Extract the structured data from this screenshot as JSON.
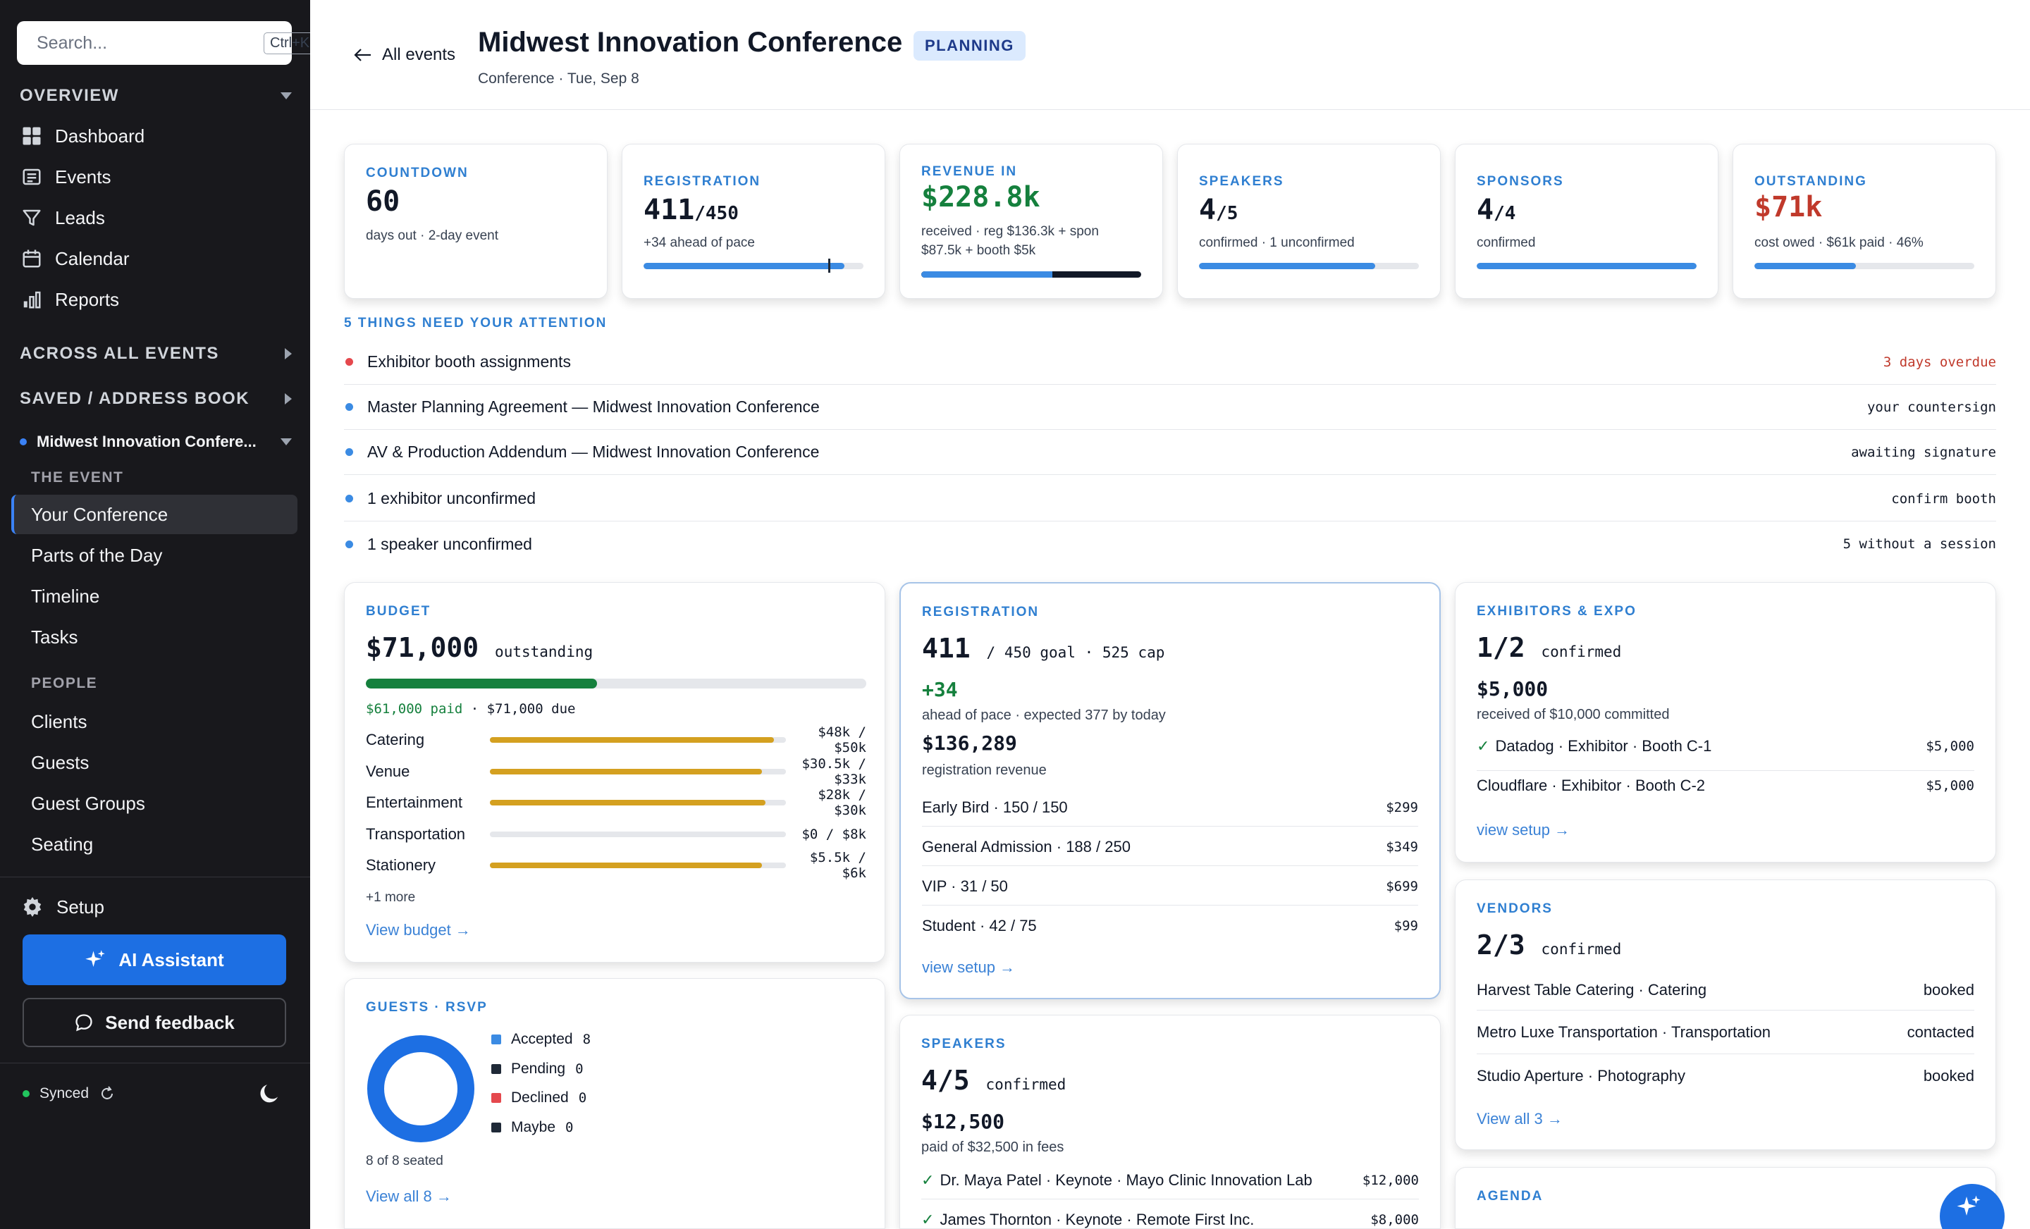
{
  "sidebar": {
    "search_placeholder": "Search...",
    "search_shortcut": "Ctrl+K",
    "overview_label": "OVERVIEW",
    "overview_items": [
      {
        "label": "Dashboard",
        "icon": "dashboard-icon"
      },
      {
        "label": "Events",
        "icon": "events-icon"
      },
      {
        "label": "Leads",
        "icon": "funnel-icon"
      },
      {
        "label": "Calendar",
        "icon": "calendar-icon"
      },
      {
        "label": "Reports",
        "icon": "reports-icon"
      }
    ],
    "across_label": "ACROSS ALL EVENTS",
    "saved_label": "SAVED / ADDRESS BOOK",
    "event_selector": "Midwest Innovation Confere...",
    "event_group_label": "THE EVENT",
    "event_items": [
      "Your Conference",
      "Parts of the Day",
      "Timeline",
      "Tasks"
    ],
    "people_group_label": "PEOPLE",
    "people_items": [
      "Clients",
      "Guests",
      "Guest Groups",
      "Seating"
    ],
    "setup_label": "Setup",
    "ai_button": "AI Assistant",
    "feedback_button": "Send feedback",
    "sync_status": "Synced"
  },
  "header": {
    "back_label": "All events",
    "title": "Midwest Innovation Conference",
    "status": "PLANNING",
    "subtitle": "Conference · Tue, Sep 8"
  },
  "kpis": {
    "countdown": {
      "label": "COUNTDOWN",
      "value": "60",
      "desc": "days out · 2-day event"
    },
    "registration": {
      "label": "REGISTRATION",
      "value": "411",
      "suffix": "/450",
      "desc": "+34 ahead of pace",
      "progress": 0.913,
      "pace_marker": 0.84
    },
    "revenue": {
      "label": "REVENUE IN",
      "value": "$228.8k",
      "desc1": "received · reg $136.3k + spon",
      "desc2": "$87.5k + booth $5k",
      "reg_share": 0.596
    },
    "speakers": {
      "label": "SPEAKERS",
      "value": "4",
      "suffix": "/5",
      "desc": "confirmed · 1 unconfirmed",
      "progress": 0.8
    },
    "sponsors": {
      "label": "SPONSORS",
      "value": "4",
      "suffix": "/4",
      "desc": "confirmed",
      "progress": 1.0
    },
    "outstanding": {
      "label": "OUTSTANDING",
      "value": "$71k",
      "desc": "cost owed · $61k paid · 46%",
      "progress": 0.46
    }
  },
  "attention": {
    "heading": "5 THINGS NEED YOUR ATTENTION",
    "items": [
      {
        "text": "Exhibitor booth assignments",
        "status": "3 days overdue",
        "color": "#e5484d",
        "status_color": "#c0392b"
      },
      {
        "text": "Master Planning Agreement — Midwest Innovation Conference",
        "status": "your countersign",
        "color": "#3b8be3",
        "status_color": "#111827"
      },
      {
        "text": "AV & Production Addendum — Midwest Innovation Conference",
        "status": "awaiting signature",
        "color": "#3b8be3",
        "status_color": "#111827"
      },
      {
        "text": "1 exhibitor unconfirmed",
        "status": "confirm booth",
        "color": "#3b8be3",
        "status_color": "#111827"
      },
      {
        "text": "1 speaker unconfirmed",
        "status": "5 without a session",
        "color": "#3b8be3",
        "status_color": "#111827"
      }
    ]
  },
  "budget": {
    "label": "BUDGET",
    "amount": "$71,000",
    "amount_suffix": "outstanding",
    "paid_progress": 0.462,
    "paid_text": "$61,000 paid",
    "due_text": "· $71,000 due",
    "lines": [
      {
        "name": "Catering",
        "value": "$48k / $50k",
        "ratio": 0.96
      },
      {
        "name": "Venue",
        "value": "$30.5k / $33k",
        "ratio": 0.92
      },
      {
        "name": "Entertainment",
        "value": "$28k / $30k",
        "ratio": 0.93
      },
      {
        "name": "Transportation",
        "value": "$0 / $8k",
        "ratio": 0
      },
      {
        "name": "Stationery",
        "value": "$5.5k / $6k",
        "ratio": 0.92
      }
    ],
    "more": "+1 more",
    "link": "View budget →"
  },
  "guests": {
    "label": "GUESTS · RSVP",
    "legend": [
      {
        "name": "Accepted",
        "count": "8",
        "color": "#3b8be3"
      },
      {
        "name": "Pending",
        "count": "0",
        "color": "#1f2937"
      },
      {
        "name": "Declined",
        "count": "0",
        "color": "#e5484d"
      },
      {
        "name": "Maybe",
        "count": "0",
        "color": "#1f2937"
      }
    ],
    "seated": "8 of 8 seated",
    "link": "View all 8 →"
  },
  "registration_card": {
    "label": "REGISTRATION",
    "count": "411",
    "count_suffix": "/ 450 goal · 525 cap",
    "delta": "+34",
    "delta_desc": "ahead of pace · expected 377 by today",
    "revenue": "$136,289",
    "revenue_desc": "registration revenue",
    "tiers": [
      {
        "name": "Early Bird · 150 / 150",
        "price": "$299"
      },
      {
        "name": "General Admission · 188 / 250",
        "price": "$349"
      },
      {
        "name": "VIP · 31 / 50",
        "price": "$699"
      },
      {
        "name": "Student · 42 / 75",
        "price": "$99"
      }
    ],
    "link": "view setup →"
  },
  "speakers_card": {
    "label": "SPEAKERS",
    "count": "4/5",
    "count_suffix": "confirmed",
    "fees": "$12,500",
    "fees_desc": "paid of $32,500 in fees",
    "items": [
      {
        "name": "Dr. Maya Patel · Keynote · Mayo Clinic Innovation Lab",
        "fee": "$12,000"
      },
      {
        "name": "James Thornton · Keynote · Remote First Inc.",
        "fee": "$8,000"
      }
    ]
  },
  "exhibitors_card": {
    "label": "EXHIBITORS & EXPO",
    "count": "1/2",
    "count_suffix": "confirmed",
    "received": "$5,000",
    "received_desc": "received of $10,000 committed",
    "items": [
      {
        "name": "Datadog · Exhibitor · Booth C-1",
        "amount": "$5,000",
        "confirmed": true
      },
      {
        "name": "Cloudflare · Exhibitor · Booth C-2",
        "amount": "$5,000",
        "confirmed": false
      }
    ],
    "link": "view setup →"
  },
  "vendors_card": {
    "label": "VENDORS",
    "count": "2/3",
    "count_suffix": "confirmed",
    "items": [
      {
        "name": "Harvest Table Catering · Catering",
        "status": "booked"
      },
      {
        "name": "Metro Luxe Transportation · Transportation",
        "status": "contacted"
      },
      {
        "name": "Studio Aperture · Photography",
        "status": "booked"
      }
    ],
    "link": "View all 3 →"
  },
  "agenda_card": {
    "label": "AGENDA"
  },
  "colors": {
    "accent": "#2f7fd1",
    "green": "#15803d",
    "red": "#c0392b",
    "gold": "#d4a020"
  }
}
